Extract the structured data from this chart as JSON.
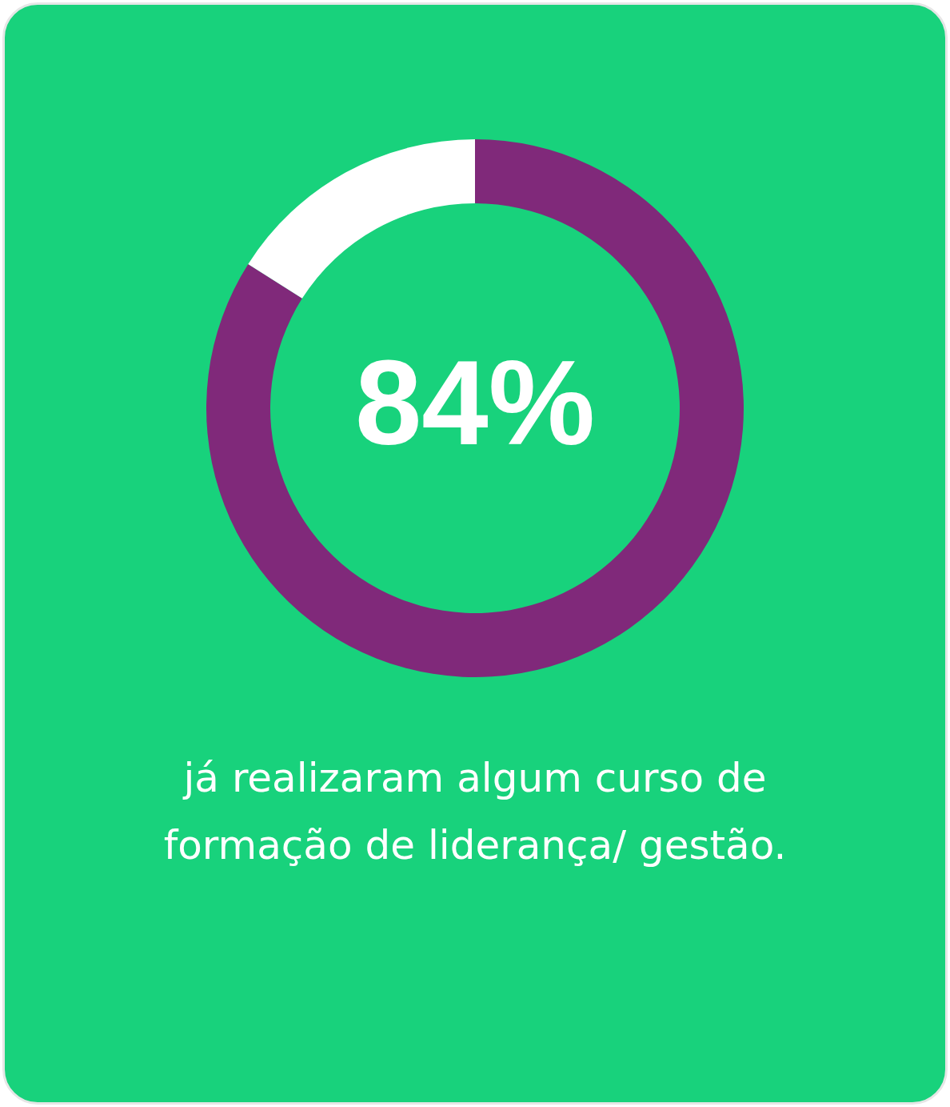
{
  "chart_data": {
    "type": "donut",
    "categories": [
      null,
      null
    ],
    "values": [
      84,
      16
    ],
    "colors": [
      "#80297a",
      "#ffffff"
    ],
    "value_labels": [
      "84%",
      null
    ],
    "annotations": [
      "já realizaram algum curso de formação de liderança/ gestão."
    ]
  }
}
